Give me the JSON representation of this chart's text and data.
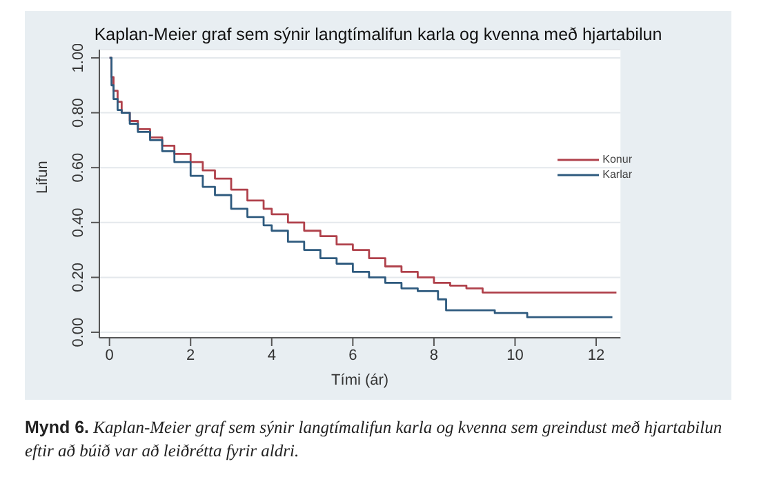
{
  "chart_data": {
    "type": "step",
    "title": "Kaplan-Meier graf sem sýnir langtímalifun karla og kvenna með hjartabilun",
    "xlabel": "Tími (ár)",
    "ylabel": "Lifun",
    "annotations": [
      "Mynd 6. Kaplan-Meier graf sem sýnir langtímalifun karla og kvenna sem greindust með hjartabilun eftir að búið var að leiðrétta fyrir aldri."
    ],
    "series": [
      {
        "name": "Konur",
        "color": "#b0414b",
        "x": [
          0,
          0.05,
          0.1,
          0.2,
          0.3,
          0.5,
          0.7,
          1,
          1.3,
          1.6,
          2,
          2.3,
          2.6,
          3,
          3.4,
          3.8,
          4,
          4.4,
          4.8,
          5.2,
          5.6,
          6,
          6.4,
          6.8,
          7.2,
          7.6,
          8,
          8.4,
          8.8,
          9.2,
          12.5
        ],
        "values": [
          1,
          0.93,
          0.88,
          0.84,
          0.8,
          0.77,
          0.74,
          0.71,
          0.68,
          0.65,
          0.62,
          0.59,
          0.56,
          0.52,
          0.48,
          0.45,
          0.43,
          0.4,
          0.37,
          0.35,
          0.32,
          0.3,
          0.27,
          0.24,
          0.22,
          0.2,
          0.18,
          0.17,
          0.16,
          0.145,
          0.145
        ]
      },
      {
        "name": "Karlar",
        "color": "#2e5a7e",
        "x": [
          0,
          0.05,
          0.1,
          0.2,
          0.3,
          0.5,
          0.7,
          1,
          1.3,
          1.6,
          2,
          2.3,
          2.6,
          3,
          3.4,
          3.8,
          4,
          4.4,
          4.8,
          5.2,
          5.6,
          6,
          6.4,
          6.8,
          7.2,
          7.6,
          8.1,
          8.3,
          9.5,
          10.3,
          12.4
        ],
        "values": [
          1,
          0.9,
          0.85,
          0.81,
          0.8,
          0.76,
          0.73,
          0.7,
          0.66,
          0.62,
          0.57,
          0.53,
          0.5,
          0.45,
          0.42,
          0.39,
          0.37,
          0.33,
          0.3,
          0.27,
          0.25,
          0.22,
          0.2,
          0.18,
          0.16,
          0.15,
          0.12,
          0.08,
          0.07,
          0.055,
          0.055
        ]
      }
    ],
    "xlim": [
      -0.25,
      12.6
    ],
    "xticks": [
      0,
      2,
      4,
      6,
      8,
      10,
      12
    ],
    "ylim": [
      -0.02,
      1.03
    ],
    "yticks": [
      {
        "value": 0,
        "label": "0.00"
      },
      {
        "value": 0.2,
        "label": "0.20"
      },
      {
        "value": 0.4,
        "label": "0.40"
      },
      {
        "value": 0.6,
        "label": "0.60"
      },
      {
        "value": 0.8,
        "label": "0.80"
      },
      {
        "value": 1,
        "label": "1.00"
      }
    ],
    "grid": "y",
    "legend": "right",
    "marker": "none",
    "line_style": "solid"
  }
}
